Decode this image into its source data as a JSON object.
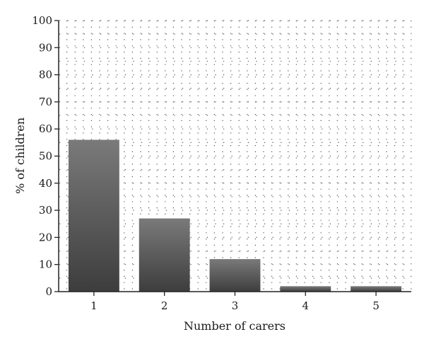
{
  "chart_data": {
    "type": "bar",
    "title": "",
    "xlabel": "Number of carers",
    "ylabel": "% of children",
    "categories": [
      "1",
      "2",
      "3",
      "4",
      "5"
    ],
    "values": [
      56,
      27,
      12,
      2,
      2
    ],
    "ylim": [
      0,
      100
    ],
    "yticks": [
      0,
      10,
      20,
      30,
      40,
      50,
      60,
      70,
      80,
      90,
      100
    ],
    "grid": true,
    "grid_style": "dotted",
    "legend": "none",
    "colors": {
      "bar_top": "#7a7a7a",
      "bar_bottom": "#3d3d3d",
      "axis": "#222222",
      "grid": "#555555"
    }
  }
}
